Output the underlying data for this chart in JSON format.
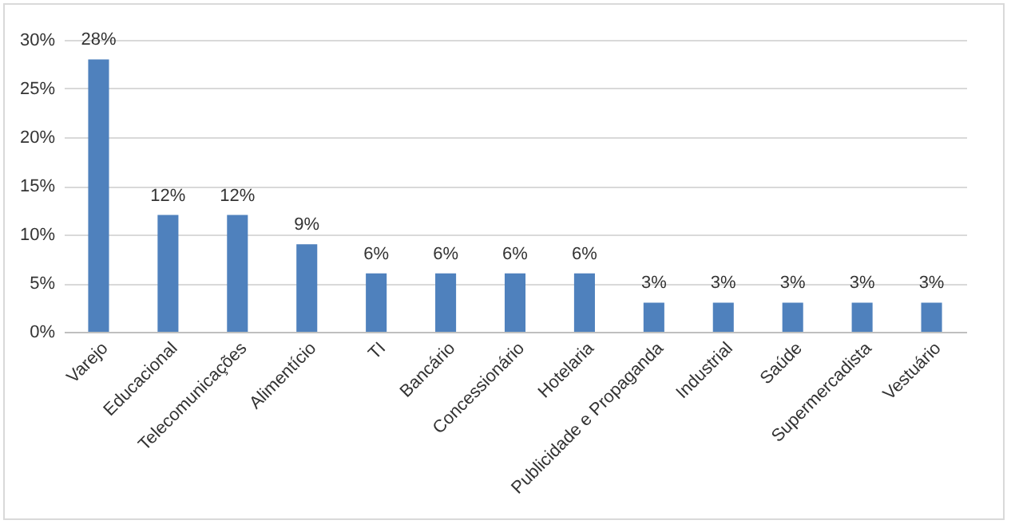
{
  "chart_data": {
    "type": "bar",
    "categories": [
      "Varejo",
      "Educacional",
      "Telecomunicações",
      "Alimentício",
      "TI",
      "Bancário",
      "Concessionário",
      "Hotelaria",
      "Publicidade e Propaganda",
      "Industrial",
      "Saúde",
      "Supermercadista",
      "Vestuário"
    ],
    "values": [
      28,
      12,
      12,
      9,
      6,
      6,
      6,
      6,
      3,
      3,
      3,
      3,
      3
    ],
    "value_labels": [
      "28%",
      "12%",
      "12%",
      "9%",
      "6%",
      "6%",
      "6%",
      "6%",
      "3%",
      "3%",
      "3%",
      "3%",
      "3%"
    ],
    "color": "#4f81bd",
    "ylim": [
      0,
      30
    ],
    "yticks": [
      {
        "value": 0,
        "label": "0%"
      },
      {
        "value": 5,
        "label": "5%"
      },
      {
        "value": 10,
        "label": "10%"
      },
      {
        "value": 15,
        "label": "15%"
      },
      {
        "value": 20,
        "label": "20%"
      },
      {
        "value": 25,
        "label": "25%"
      },
      {
        "value": 30,
        "label": "30%"
      }
    ],
    "grid": "y"
  }
}
